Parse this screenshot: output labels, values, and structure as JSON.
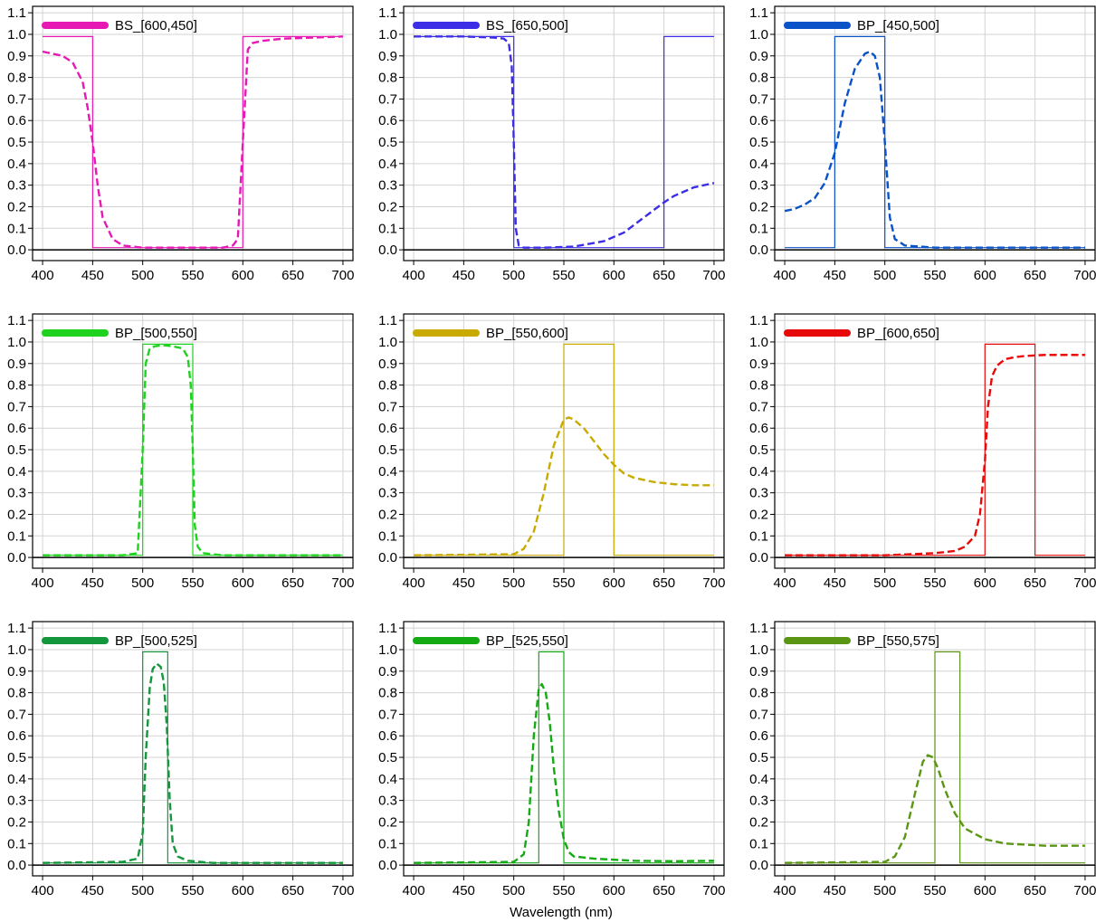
{
  "chart_data": [
    {
      "type": "line",
      "legend": "BS_[600,450]",
      "color": "#e619b4",
      "xlim": [
        390,
        710
      ],
      "ylim": [
        -0.05,
        1.13
      ],
      "xticks": [
        400,
        450,
        500,
        550,
        600,
        650,
        700
      ],
      "yticks": [
        0.0,
        0.1,
        0.2,
        0.3,
        0.4,
        0.5,
        0.6,
        0.7,
        0.8,
        0.9,
        1.0,
        1.1
      ],
      "grid": true,
      "legend_placement": "top-left",
      "series": [
        {
          "style": "solid",
          "x": [
            400,
            450,
            450,
            600,
            600,
            700
          ],
          "y": [
            0.99,
            0.99,
            0.01,
            0.01,
            0.99,
            0.99
          ]
        },
        {
          "style": "dashed",
          "x": [
            400,
            410,
            420,
            430,
            440,
            445,
            450,
            455,
            460,
            470,
            480,
            500,
            550,
            580,
            590,
            595,
            600,
            605,
            610,
            620,
            640,
            670,
            700
          ],
          "y": [
            0.92,
            0.91,
            0.9,
            0.87,
            0.78,
            0.66,
            0.5,
            0.3,
            0.15,
            0.05,
            0.02,
            0.01,
            0.01,
            0.01,
            0.02,
            0.05,
            0.5,
            0.93,
            0.96,
            0.97,
            0.98,
            0.985,
            0.99
          ]
        }
      ]
    },
    {
      "type": "line",
      "legend": "BS_[650,500]",
      "color": "#3c2ee6",
      "xlim": [
        390,
        710
      ],
      "ylim": [
        -0.05,
        1.13
      ],
      "xticks": [
        400,
        450,
        500,
        550,
        600,
        650,
        700
      ],
      "yticks": [
        0.0,
        0.1,
        0.2,
        0.3,
        0.4,
        0.5,
        0.6,
        0.7,
        0.8,
        0.9,
        1.0,
        1.1
      ],
      "grid": true,
      "legend_placement": "top-left",
      "series": [
        {
          "style": "solid",
          "x": [
            400,
            500,
            500,
            650,
            650,
            700
          ],
          "y": [
            0.99,
            0.99,
            0.01,
            0.01,
            0.99,
            0.99
          ]
        },
        {
          "style": "dashed",
          "x": [
            400,
            450,
            480,
            490,
            495,
            498,
            500,
            502,
            505,
            510,
            530,
            560,
            590,
            610,
            630,
            650,
            660,
            680,
            700
          ],
          "y": [
            0.99,
            0.99,
            0.985,
            0.98,
            0.96,
            0.85,
            0.5,
            0.1,
            0.02,
            0.01,
            0.01,
            0.015,
            0.04,
            0.08,
            0.15,
            0.22,
            0.25,
            0.29,
            0.31
          ]
        }
      ]
    },
    {
      "type": "line",
      "legend": "BP_[450,500]",
      "color": "#0a52c8",
      "xlim": [
        390,
        710
      ],
      "ylim": [
        -0.05,
        1.13
      ],
      "xticks": [
        400,
        450,
        500,
        550,
        600,
        650,
        700
      ],
      "yticks": [
        0.0,
        0.1,
        0.2,
        0.3,
        0.4,
        0.5,
        0.6,
        0.7,
        0.8,
        0.9,
        1.0,
        1.1
      ],
      "grid": true,
      "legend_placement": "top-left",
      "series": [
        {
          "style": "solid",
          "x": [
            400,
            450,
            450,
            500,
            500,
            700
          ],
          "y": [
            0.01,
            0.01,
            0.99,
            0.99,
            0.01,
            0.01
          ]
        },
        {
          "style": "dashed",
          "x": [
            400,
            410,
            420,
            430,
            440,
            450,
            460,
            470,
            480,
            485,
            490,
            495,
            500,
            505,
            510,
            520,
            550,
            700
          ],
          "y": [
            0.18,
            0.19,
            0.21,
            0.24,
            0.31,
            0.45,
            0.68,
            0.84,
            0.91,
            0.92,
            0.9,
            0.8,
            0.5,
            0.15,
            0.05,
            0.02,
            0.01,
            0.01
          ]
        }
      ]
    },
    {
      "type": "line",
      "legend": "BP_[500,550]",
      "color": "#1ed21e",
      "xlim": [
        390,
        710
      ],
      "ylim": [
        -0.05,
        1.13
      ],
      "xticks": [
        400,
        450,
        500,
        550,
        600,
        650,
        700
      ],
      "yticks": [
        0.0,
        0.1,
        0.2,
        0.3,
        0.4,
        0.5,
        0.6,
        0.7,
        0.8,
        0.9,
        1.0,
        1.1
      ],
      "grid": true,
      "legend_placement": "top-left",
      "series": [
        {
          "style": "solid",
          "x": [
            400,
            500,
            500,
            550,
            550,
            700
          ],
          "y": [
            0.01,
            0.01,
            0.99,
            0.99,
            0.01,
            0.01
          ]
        },
        {
          "style": "dashed",
          "x": [
            400,
            480,
            495,
            500,
            503,
            507,
            512,
            520,
            530,
            540,
            545,
            548,
            550,
            552,
            555,
            560,
            580,
            700
          ],
          "y": [
            0.01,
            0.01,
            0.02,
            0.5,
            0.9,
            0.97,
            0.98,
            0.985,
            0.98,
            0.97,
            0.93,
            0.8,
            0.5,
            0.15,
            0.05,
            0.02,
            0.01,
            0.01
          ]
        }
      ]
    },
    {
      "type": "line",
      "legend": "BP_[550,600]",
      "color": "#c8aa00",
      "xlim": [
        390,
        710
      ],
      "ylim": [
        -0.05,
        1.13
      ],
      "xticks": [
        400,
        450,
        500,
        550,
        600,
        650,
        700
      ],
      "yticks": [
        0.0,
        0.1,
        0.2,
        0.3,
        0.4,
        0.5,
        0.6,
        0.7,
        0.8,
        0.9,
        1.0,
        1.1
      ],
      "grid": true,
      "legend_placement": "top-left",
      "series": [
        {
          "style": "solid",
          "x": [
            400,
            550,
            550,
            600,
            600,
            700
          ],
          "y": [
            0.01,
            0.01,
            0.99,
            0.99,
            0.01,
            0.01
          ]
        },
        {
          "style": "dashed",
          "x": [
            400,
            500,
            510,
            520,
            530,
            540,
            550,
            555,
            560,
            570,
            580,
            590,
            600,
            610,
            620,
            640,
            660,
            680,
            700
          ],
          "y": [
            0.01,
            0.015,
            0.04,
            0.12,
            0.3,
            0.52,
            0.64,
            0.65,
            0.64,
            0.6,
            0.54,
            0.48,
            0.43,
            0.39,
            0.37,
            0.35,
            0.34,
            0.335,
            0.335
          ]
        }
      ]
    },
    {
      "type": "line",
      "legend": "BP_[600,650]",
      "color": "#e60a0a",
      "xlim": [
        390,
        710
      ],
      "ylim": [
        -0.05,
        1.13
      ],
      "xticks": [
        400,
        450,
        500,
        550,
        600,
        650,
        700
      ],
      "yticks": [
        0.0,
        0.1,
        0.2,
        0.3,
        0.4,
        0.5,
        0.6,
        0.7,
        0.8,
        0.9,
        1.0,
        1.1
      ],
      "grid": true,
      "legend_placement": "top-left",
      "series": [
        {
          "style": "solid",
          "x": [
            400,
            600,
            600,
            650,
            650,
            700
          ],
          "y": [
            0.01,
            0.01,
            0.99,
            0.99,
            0.01,
            0.01
          ]
        },
        {
          "style": "dashed",
          "x": [
            400,
            500,
            550,
            570,
            580,
            590,
            595,
            600,
            603,
            607,
            612,
            620,
            630,
            640,
            660,
            680,
            700
          ],
          "y": [
            0.01,
            0.01,
            0.02,
            0.03,
            0.05,
            0.1,
            0.2,
            0.45,
            0.7,
            0.84,
            0.89,
            0.92,
            0.93,
            0.935,
            0.94,
            0.94,
            0.94
          ]
        }
      ]
    },
    {
      "type": "line",
      "legend": "BP_[500,525]",
      "color": "#14963c",
      "xlim": [
        390,
        710
      ],
      "ylim": [
        -0.05,
        1.13
      ],
      "xticks": [
        400,
        450,
        500,
        550,
        600,
        650,
        700
      ],
      "yticks": [
        0.0,
        0.1,
        0.2,
        0.3,
        0.4,
        0.5,
        0.6,
        0.7,
        0.8,
        0.9,
        1.0,
        1.1
      ],
      "grid": true,
      "legend_placement": "top-left",
      "series": [
        {
          "style": "solid",
          "x": [
            400,
            500,
            500,
            525,
            525,
            700
          ],
          "y": [
            0.01,
            0.01,
            0.99,
            0.99,
            0.01,
            0.01
          ]
        },
        {
          "style": "dashed",
          "x": [
            400,
            480,
            495,
            500,
            503,
            507,
            510,
            514,
            518,
            521,
            524,
            527,
            530,
            535,
            545,
            570,
            700
          ],
          "y": [
            0.01,
            0.015,
            0.03,
            0.15,
            0.5,
            0.82,
            0.91,
            0.935,
            0.92,
            0.85,
            0.65,
            0.3,
            0.1,
            0.04,
            0.02,
            0.01,
            0.01
          ]
        }
      ]
    },
    {
      "type": "line",
      "legend": "BP_[525,550]",
      "color": "#14aa14",
      "xlim": [
        390,
        710
      ],
      "ylim": [
        -0.05,
        1.13
      ],
      "xticks": [
        400,
        450,
        500,
        550,
        600,
        650,
        700
      ],
      "yticks": [
        0.0,
        0.1,
        0.2,
        0.3,
        0.4,
        0.5,
        0.6,
        0.7,
        0.8,
        0.9,
        1.0,
        1.1
      ],
      "grid": true,
      "legend_placement": "top-left",
      "series": [
        {
          "style": "solid",
          "x": [
            400,
            525,
            525,
            550,
            550,
            700
          ],
          "y": [
            0.01,
            0.01,
            0.99,
            0.99,
            0.01,
            0.01
          ]
        },
        {
          "style": "dashed",
          "x": [
            400,
            500,
            510,
            515,
            520,
            525,
            528,
            532,
            536,
            540,
            545,
            550,
            555,
            560,
            580,
            620,
            660,
            700
          ],
          "y": [
            0.01,
            0.015,
            0.05,
            0.2,
            0.6,
            0.82,
            0.84,
            0.8,
            0.66,
            0.45,
            0.25,
            0.12,
            0.06,
            0.04,
            0.03,
            0.02,
            0.018,
            0.02
          ]
        }
      ]
    },
    {
      "type": "line",
      "legend": "BP_[550,575]",
      "color": "#5a9614",
      "xlim": [
        390,
        710
      ],
      "ylim": [
        -0.05,
        1.13
      ],
      "xticks": [
        400,
        450,
        500,
        550,
        600,
        650,
        700
      ],
      "yticks": [
        0.0,
        0.1,
        0.2,
        0.3,
        0.4,
        0.5,
        0.6,
        0.7,
        0.8,
        0.9,
        1.0,
        1.1
      ],
      "grid": true,
      "legend_placement": "top-left",
      "series": [
        {
          "style": "solid",
          "x": [
            400,
            550,
            550,
            575,
            575,
            700
          ],
          "y": [
            0.01,
            0.01,
            0.99,
            0.99,
            0.01,
            0.01
          ]
        },
        {
          "style": "dashed",
          "x": [
            400,
            500,
            510,
            520,
            530,
            538,
            543,
            548,
            553,
            560,
            570,
            580,
            600,
            620,
            640,
            660,
            680,
            700
          ],
          "y": [
            0.01,
            0.015,
            0.04,
            0.13,
            0.33,
            0.48,
            0.51,
            0.5,
            0.45,
            0.35,
            0.24,
            0.17,
            0.12,
            0.1,
            0.095,
            0.09,
            0.09,
            0.09
          ]
        }
      ]
    }
  ],
  "figure": {
    "xlabel": "Wavelength (nm)",
    "axis_color": "#000000",
    "grid_color": "#d3d3d3",
    "zero_line_color": "#000000"
  }
}
